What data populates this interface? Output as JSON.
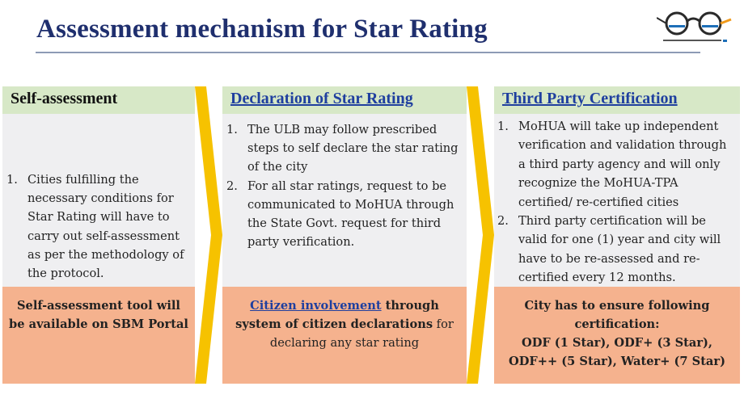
{
  "title": "Assessment mechanism for Star Rating",
  "logo": {
    "name": "swachh-bharat-logo"
  },
  "colors": {
    "title": "#1f2f6e",
    "header_bg": "#d7e8c7",
    "body_bg": "#efeff1",
    "footer_bg": "#f5b28e",
    "arrow": "#f6c200",
    "link": "#1f3f9f"
  },
  "columns": [
    {
      "heading": "Self-assessment",
      "items": [
        {
          "num": "1.",
          "text": "Cities fulfilling the necessary conditions for Star Rating will have to carry out self-assessment as per the methodology of the protocol."
        }
      ],
      "footer": {
        "text": "Self-assessment tool will be available on SBM Portal"
      }
    },
    {
      "heading": "Declaration of Star Rating",
      "items": [
        {
          "num": "1.",
          "text": "The ULB may follow prescribed steps to self declare the star rating of the city"
        },
        {
          "num": "2.",
          "text": "For all star ratings, request to be communicated to MoHUA through the State Govt. request for third party verification."
        }
      ],
      "footer": {
        "link": "Citizen involvement",
        "bold1": " through",
        "bold2": "system of citizen declarations",
        "rest": " for declaring any star rating"
      }
    },
    {
      "heading": "Third Party Certification",
      "items": [
        {
          "num": "1.",
          "text": "MoHUA will take up independent verification and validation through a third party agency and will only recognize the MoHUA-TPA certified/ re-certified cities"
        },
        {
          "num": "2.",
          "text": "Third party certification will be valid for one (1) year and city will have to be re-assessed and re-certified every 12 months."
        }
      ],
      "footer": {
        "lines": [
          "City has to ensure following",
          "certification:",
          "ODF (1 Star), ODF+ (3 Star),",
          "ODF++ (5 Star), Water+ (7 Star)"
        ]
      }
    }
  ]
}
